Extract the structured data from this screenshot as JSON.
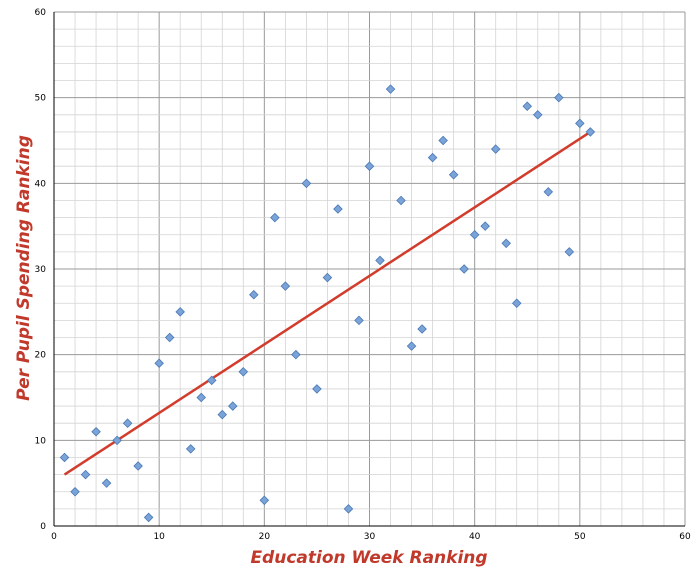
{
  "colors": {
    "trendline": "#d23c2c",
    "marker_fill": "#7aa3d8",
    "marker_stroke": "#4a78b5",
    "axis_title": "#c8382a",
    "grid_minor": "#d4d4d4",
    "grid_major": "#9a9a9a"
  },
  "chart_data": {
    "type": "scatter",
    "title": "",
    "xlabel": "Education Week Ranking",
    "ylabel": "Per Pupil Spending Ranking",
    "xlim": [
      0,
      60
    ],
    "ylim": [
      0,
      60
    ],
    "x_ticks": [
      0,
      10,
      20,
      30,
      40,
      50,
      60
    ],
    "y_ticks": [
      0,
      10,
      20,
      30,
      40,
      50,
      60
    ],
    "grid": true,
    "legend": "none",
    "points": [
      {
        "x": 1,
        "y": 8
      },
      {
        "x": 2,
        "y": 4
      },
      {
        "x": 3,
        "y": 6
      },
      {
        "x": 4,
        "y": 11
      },
      {
        "x": 5,
        "y": 5
      },
      {
        "x": 6,
        "y": 10
      },
      {
        "x": 7,
        "y": 12
      },
      {
        "x": 8,
        "y": 7
      },
      {
        "x": 9,
        "y": 1
      },
      {
        "x": 10,
        "y": 19
      },
      {
        "x": 11,
        "y": 22
      },
      {
        "x": 12,
        "y": 25
      },
      {
        "x": 13,
        "y": 9
      },
      {
        "x": 14,
        "y": 15
      },
      {
        "x": 15,
        "y": 17
      },
      {
        "x": 16,
        "y": 13
      },
      {
        "x": 17,
        "y": 14
      },
      {
        "x": 18,
        "y": 18
      },
      {
        "x": 19,
        "y": 27
      },
      {
        "x": 20,
        "y": 3
      },
      {
        "x": 21,
        "y": 36
      },
      {
        "x": 22,
        "y": 28
      },
      {
        "x": 23,
        "y": 20
      },
      {
        "x": 24,
        "y": 40
      },
      {
        "x": 25,
        "y": 16
      },
      {
        "x": 26,
        "y": 29
      },
      {
        "x": 27,
        "y": 37
      },
      {
        "x": 28,
        "y": 2
      },
      {
        "x": 29,
        "y": 24
      },
      {
        "x": 30,
        "y": 42
      },
      {
        "x": 31,
        "y": 31
      },
      {
        "x": 32,
        "y": 51
      },
      {
        "x": 33,
        "y": 38
      },
      {
        "x": 34,
        "y": 21
      },
      {
        "x": 35,
        "y": 23
      },
      {
        "x": 36,
        "y": 43
      },
      {
        "x": 37,
        "y": 45
      },
      {
        "x": 38,
        "y": 41
      },
      {
        "x": 39,
        "y": 30
      },
      {
        "x": 40,
        "y": 34
      },
      {
        "x": 41,
        "y": 35
      },
      {
        "x": 42,
        "y": 44
      },
      {
        "x": 43,
        "y": 33
      },
      {
        "x": 44,
        "y": 26
      },
      {
        "x": 45,
        "y": 49
      },
      {
        "x": 46,
        "y": 48
      },
      {
        "x": 47,
        "y": 39
      },
      {
        "x": 48,
        "y": 50
      },
      {
        "x": 49,
        "y": 32
      },
      {
        "x": 50,
        "y": 47
      },
      {
        "x": 51,
        "y": 46
      }
    ],
    "trendline": {
      "x": [
        1,
        51
      ],
      "y": [
        6,
        46
      ]
    }
  }
}
